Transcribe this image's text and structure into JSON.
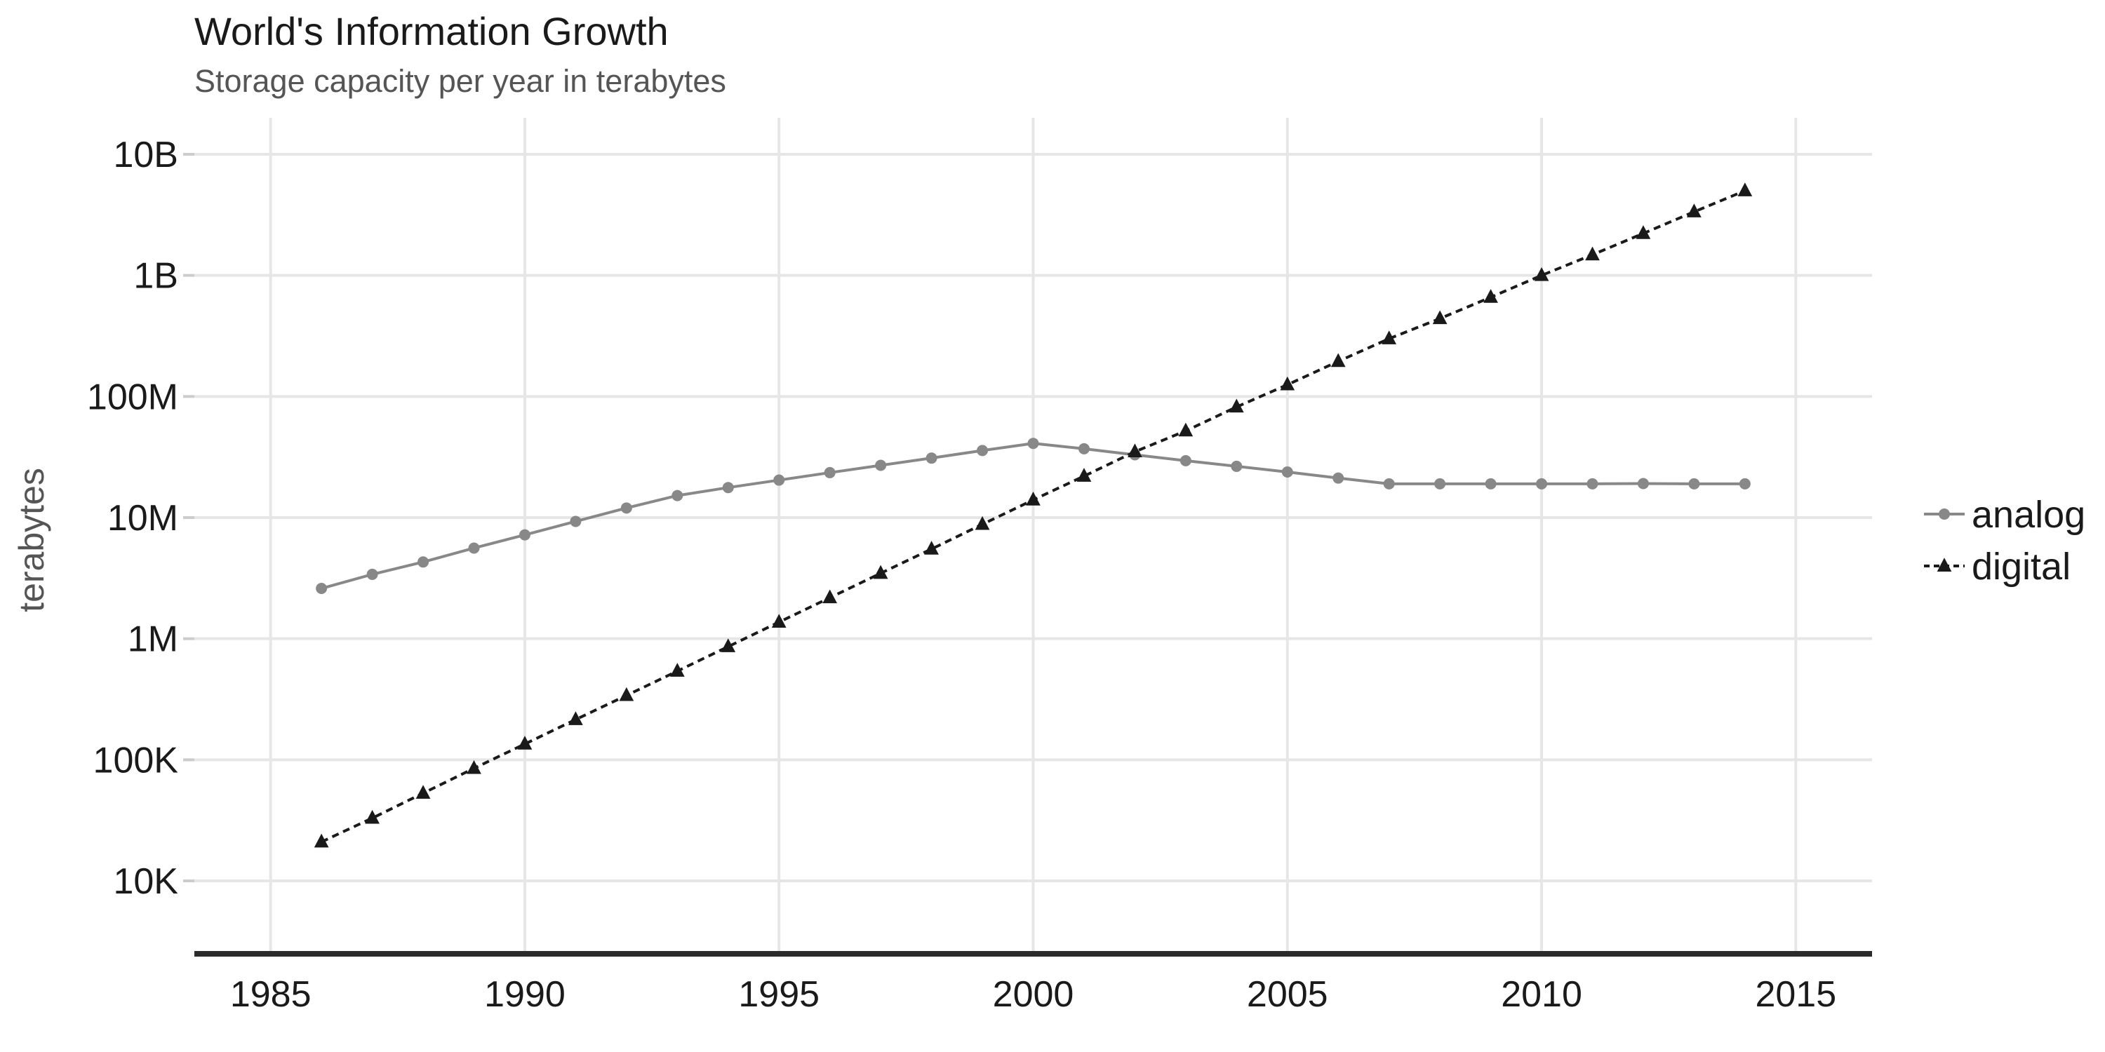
{
  "chart_data": {
    "type": "line",
    "title": "World's Information Growth",
    "subtitle": "Storage capacity per year in terabytes",
    "xlabel": "",
    "ylabel": "terabytes",
    "y_scale": "log10",
    "xlim": [
      1983.5,
      2016.5
    ],
    "ylim": [
      2500,
      20000000000
    ],
    "x_ticks": [
      1985,
      1990,
      1995,
      2000,
      2005,
      2010,
      2015
    ],
    "x_tick_labels": [
      "1985",
      "1990",
      "1995",
      "2000",
      "2005",
      "2010",
      "2015"
    ],
    "y_ticks": [
      10000,
      100000,
      1000000,
      10000000,
      100000000,
      1000000000,
      10000000000
    ],
    "y_tick_labels": [
      "10K",
      "100K",
      "1M",
      "10M",
      "100M",
      "1B",
      "10B"
    ],
    "grid": true,
    "legend_position": "right",
    "x": [
      1986,
      1987,
      1988,
      1989,
      1990,
      1991,
      1992,
      1993,
      1994,
      1995,
      1996,
      1997,
      1998,
      1999,
      2000,
      2001,
      2002,
      2003,
      2004,
      2005,
      2006,
      2007,
      2008,
      2009,
      2010,
      2011,
      2012,
      2013,
      2014
    ],
    "series": [
      {
        "name": "analog",
        "color": "#888888",
        "line_style": "solid",
        "marker": "circle",
        "values": [
          2600000,
          3400000,
          4300000,
          5600000,
          7200000,
          9300000,
          12000000,
          15200000,
          17700000,
          20400000,
          23500000,
          27000000,
          31000000,
          35800000,
          41000000,
          37000000,
          33000000,
          29500000,
          26500000,
          23800000,
          21200000,
          19000000,
          19000000,
          19000000,
          19000000,
          19000000,
          19100000,
          19000000,
          19000000
        ]
      },
      {
        "name": "digital",
        "color": "#1a1a1a",
        "line_style": "dashed",
        "marker": "triangle",
        "values": [
          21000,
          33000,
          53000,
          85000,
          135000,
          215000,
          340000,
          540000,
          860000,
          1370000,
          2180000,
          3470000,
          5500000,
          8800000,
          14000000,
          22000000,
          35000000,
          52000000,
          82000000,
          125000000,
          195000000,
          300000000,
          440000000,
          660000000,
          1000000000,
          1480000000,
          2220000000,
          3350000000,
          5000000000
        ]
      }
    ]
  }
}
